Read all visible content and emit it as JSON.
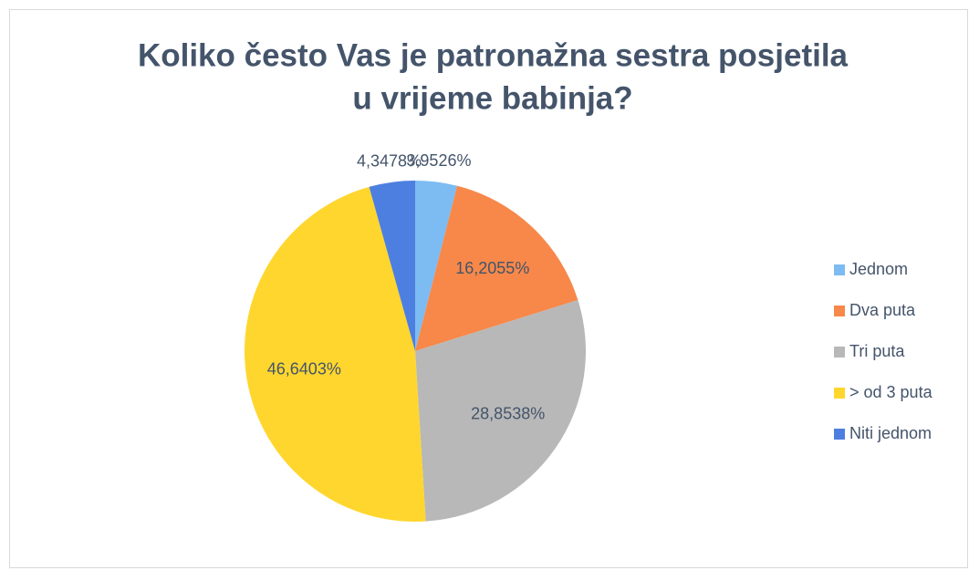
{
  "chart_data": {
    "type": "pie",
    "title": [
      "Koliko često Vas je patronažna sestra posjetila",
      "u vrijeme babinja?"
    ],
    "categories": [
      "Jednom",
      "Dva puta",
      "Tri puta",
      "> od 3 puta",
      "Niti jednom"
    ],
    "values": [
      3.9526,
      16.2055,
      28.8538,
      46.6403,
      4.3478
    ],
    "value_labels": [
      "3,9526%",
      "16,2055%",
      "28,8538%",
      "46,6403%",
      "4,3478%"
    ],
    "colors": [
      "#7dbcf2",
      "#f7884a",
      "#b8b8b8",
      "#ffd62e",
      "#4d7fe0"
    ],
    "legend": "right"
  }
}
